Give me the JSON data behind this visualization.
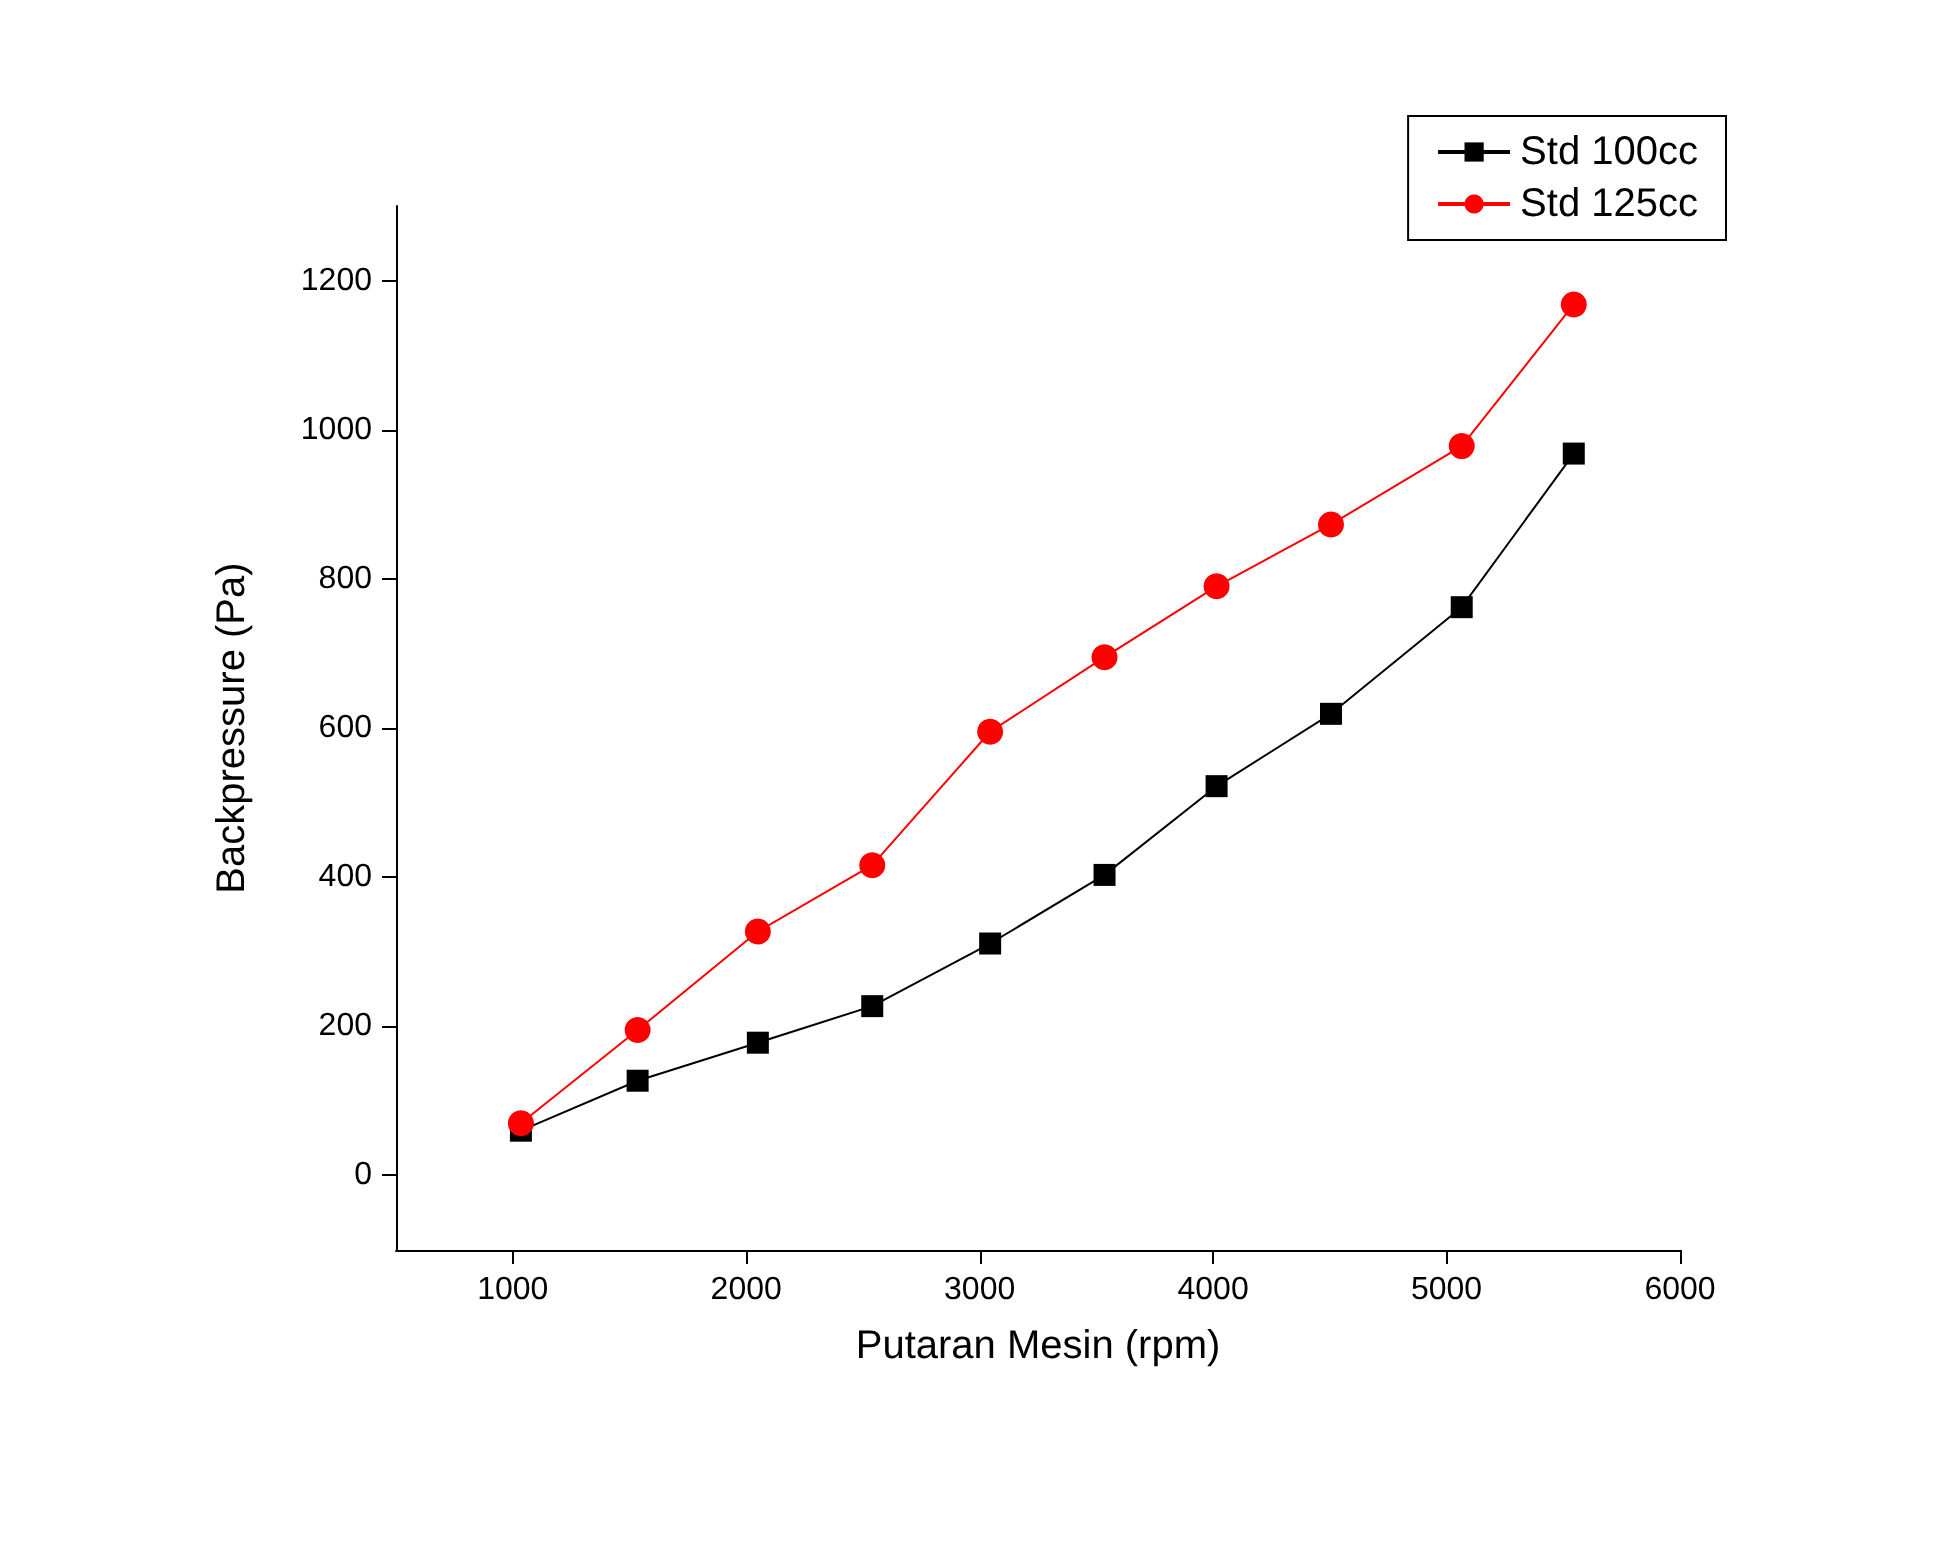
{
  "chart_data": {
    "type": "line",
    "xlabel": "Putaran Mesin (rpm)",
    "ylabel": "Backpressure (Pa)",
    "xlim": [
      500,
      6000
    ],
    "xticks": [
      1000,
      2000,
      3000,
      4000,
      5000,
      6000
    ],
    "ylim": [
      -100,
      1300
    ],
    "yticks": [
      0,
      200,
      400,
      600,
      800,
      1000,
      1200
    ],
    "grid": false,
    "legend": "top right",
    "line_style": "solid",
    "series": [
      {
        "name": "Std 100cc",
        "color": "#000000",
        "marker": "square",
        "x": [
          1035,
          1535,
          2050,
          2540,
          3045,
          3535,
          4015,
          4505,
          5065,
          5545
        ],
        "values": [
          60,
          127,
          178,
          227,
          311,
          403,
          522,
          619,
          762,
          968
        ]
      },
      {
        "name": "Std 125cc",
        "color": "#ff0000",
        "marker": "circle",
        "x": [
          1035,
          1535,
          2050,
          2540,
          3045,
          3535,
          4015,
          4505,
          5065,
          5545
        ],
        "values": [
          70,
          195,
          327,
          416,
          595,
          695,
          790,
          873,
          978,
          1168
        ]
      }
    ]
  }
}
